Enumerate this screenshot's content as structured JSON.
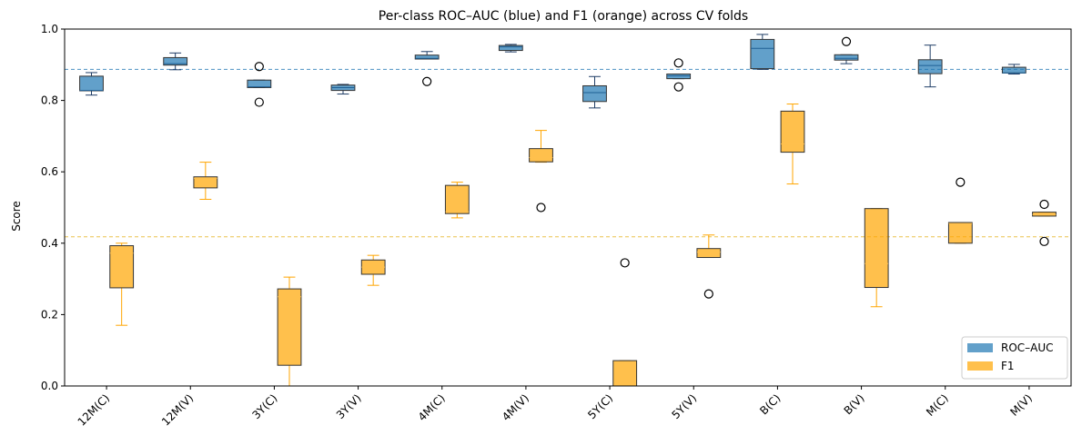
{
  "chart_data": {
    "type": "box",
    "title": "Per-class ROC–AUC (blue) and F1 (orange) across CV folds",
    "xlabel": "",
    "ylabel": "Score",
    "ylim": [
      0,
      1.0
    ],
    "yticks": [
      0.0,
      0.2,
      0.4,
      0.6,
      0.8,
      1.0
    ],
    "ytick_labels": [
      "0.0",
      "0.2",
      "0.4",
      "0.6",
      "0.8",
      "1.0"
    ],
    "categories": [
      "12M(C)",
      "12M(V)",
      "3Y(C)",
      "3Y(V)",
      "4M(C)",
      "4M(V)",
      "5Y(C)",
      "5Y(V)",
      "B(C)",
      "B(V)",
      "M(C)",
      "M(V)"
    ],
    "legend_position": "bottom-right",
    "grid": false,
    "series": [
      {
        "name": "ROC–AUC",
        "color": "#1f77b4",
        "reference_line": 0.887,
        "boxes": [
          {
            "min": 0.815,
            "q1": 0.827,
            "median": 0.828,
            "q3": 0.868,
            "max": 0.878,
            "outliers": []
          },
          {
            "min": 0.886,
            "q1": 0.899,
            "median": 0.903,
            "q3": 0.92,
            "max": 0.933,
            "outliers": []
          },
          {
            "min": 0.836,
            "q1": 0.836,
            "median": 0.838,
            "q3": 0.857,
            "max": 0.857,
            "outliers": [
              0.795,
              0.895
            ]
          },
          {
            "min": 0.818,
            "q1": 0.828,
            "median": 0.836,
            "q3": 0.843,
            "max": 0.845,
            "outliers": []
          },
          {
            "min": 0.916,
            "q1": 0.916,
            "median": 0.918,
            "q3": 0.927,
            "max": 0.937,
            "outliers": [
              0.853
            ]
          },
          {
            "min": 0.936,
            "q1": 0.94,
            "median": 0.95,
            "q3": 0.954,
            "max": 0.957,
            "outliers": []
          },
          {
            "min": 0.779,
            "q1": 0.797,
            "median": 0.822,
            "q3": 0.841,
            "max": 0.867,
            "outliers": []
          },
          {
            "min": 0.861,
            "q1": 0.861,
            "median": 0.869,
            "q3": 0.874,
            "max": 0.874,
            "outliers": [
              0.838,
              0.905
            ]
          },
          {
            "min": 0.887,
            "q1": 0.889,
            "median": 0.946,
            "q3": 0.971,
            "max": 0.985,
            "outliers": []
          },
          {
            "min": 0.903,
            "q1": 0.913,
            "median": 0.918,
            "q3": 0.928,
            "max": 0.928,
            "outliers": [
              0.965
            ]
          },
          {
            "min": 0.838,
            "q1": 0.875,
            "median": 0.898,
            "q3": 0.914,
            "max": 0.955,
            "outliers": []
          },
          {
            "min": 0.874,
            "q1": 0.877,
            "median": 0.877,
            "q3": 0.893,
            "max": 0.901,
            "outliers": []
          }
        ]
      },
      {
        "name": "F1",
        "color": "#ffa500",
        "reference_line": 0.418,
        "boxes": [
          {
            "min": 0.17,
            "q1": 0.275,
            "median": 0.372,
            "q3": 0.393,
            "max": 0.4,
            "outliers": []
          },
          {
            "min": 0.523,
            "q1": 0.555,
            "median": 0.582,
            "q3": 0.586,
            "max": 0.627,
            "outliers": []
          },
          {
            "min": 0.0,
            "q1": 0.058,
            "median": 0.25,
            "q3": 0.272,
            "max": 0.305,
            "outliers": []
          },
          {
            "min": 0.282,
            "q1": 0.313,
            "median": 0.333,
            "q3": 0.353,
            "max": 0.366,
            "outliers": []
          },
          {
            "min": 0.471,
            "q1": 0.483,
            "median": 0.488,
            "q3": 0.562,
            "max": 0.571,
            "outliers": []
          },
          {
            "min": 0.627,
            "q1": 0.628,
            "median": 0.64,
            "q3": 0.665,
            "max": 0.716,
            "outliers": [
              0.5
            ]
          },
          {
            "min": 0.0,
            "q1": 0.0,
            "median": 0.0,
            "q3": 0.071,
            "max": 0.071,
            "outliers": [
              0.345
            ]
          },
          {
            "min": 0.36,
            "q1": 0.36,
            "median": 0.375,
            "q3": 0.385,
            "max": 0.423,
            "outliers": [
              0.258
            ]
          },
          {
            "min": 0.566,
            "q1": 0.655,
            "median": 0.678,
            "q3": 0.77,
            "max": 0.79,
            "outliers": []
          },
          {
            "min": 0.222,
            "q1": 0.276,
            "median": 0.343,
            "q3": 0.497,
            "max": 0.497,
            "outliers": []
          },
          {
            "min": 0.4,
            "q1": 0.4,
            "median": 0.455,
            "q3": 0.458,
            "max": 0.458,
            "outliers": [
              0.571
            ]
          },
          {
            "min": 0.476,
            "q1": 0.476,
            "median": 0.48,
            "q3": 0.487,
            "max": 0.487,
            "outliers": [
              0.405,
              0.509
            ]
          }
        ]
      }
    ]
  }
}
